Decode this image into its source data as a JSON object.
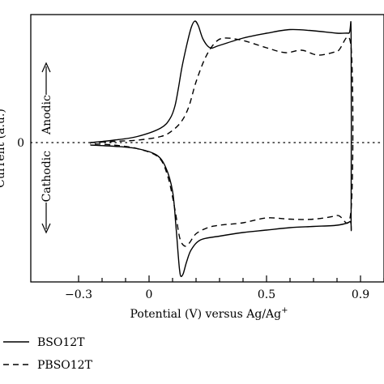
{
  "chart_data": {
    "type": "line",
    "xlabel": "Potential (V) versus Ag/Ag",
    "xlabel_sup": "+",
    "ylabel": "Current (a.u.)",
    "xlim": [
      -0.3,
      0.95
    ],
    "x_ticks": [
      "−0.3",
      "0",
      "0.5",
      "0.9"
    ],
    "x_tick_values": [
      -0.3,
      0,
      0.5,
      0.9
    ],
    "y_ticks": [
      "0"
    ],
    "zero_label": "0",
    "annotations": {
      "anodic": "Anodic",
      "cathodic": "Cathodic"
    },
    "legend_position": "bottom-left",
    "series": [
      {
        "name": "BSO12T",
        "style": "solid",
        "x": [
          -0.25,
          -0.15,
          -0.05,
          0.05,
          0.09,
          0.11,
          0.125,
          0.14,
          0.16,
          0.18,
          0.195,
          0.21,
          0.23,
          0.26,
          0.3,
          0.4,
          0.5,
          0.6,
          0.7,
          0.8,
          0.85,
          0.86,
          0.86,
          0.855,
          0.8,
          0.7,
          0.6,
          0.5,
          0.4,
          0.3,
          0.22,
          0.18,
          0.16,
          0.145,
          0.135,
          0.13,
          0.125,
          0.115,
          0.1,
          0.07,
          0.03,
          -0.05,
          -0.15,
          -0.25
        ],
        "y": [
          0.0,
          0.02,
          0.05,
          0.12,
          0.2,
          0.3,
          0.45,
          0.62,
          0.8,
          0.95,
          1.0,
          0.96,
          0.85,
          0.78,
          0.8,
          0.86,
          0.9,
          0.93,
          0.92,
          0.9,
          0.9,
          0.88,
          -0.6,
          -0.65,
          -0.68,
          -0.69,
          -0.7,
          -0.72,
          -0.74,
          -0.77,
          -0.8,
          -0.88,
          -0.98,
          -1.08,
          -1.1,
          -1.05,
          -0.95,
          -0.7,
          -0.4,
          -0.2,
          -0.1,
          -0.05,
          -0.03,
          -0.02
        ]
      },
      {
        "name": "PBSO12T",
        "style": "dashed",
        "x": [
          -0.25,
          -0.15,
          -0.05,
          0.05,
          0.1,
          0.14,
          0.17,
          0.2,
          0.24,
          0.28,
          0.32,
          0.4,
          0.5,
          0.58,
          0.65,
          0.72,
          0.8,
          0.86,
          0.86,
          0.8,
          0.7,
          0.6,
          0.5,
          0.4,
          0.3,
          0.25,
          0.2,
          0.17,
          0.15,
          0.13,
          0.11,
          0.08,
          0.04,
          -0.05,
          -0.15,
          -0.25
        ],
        "y": [
          0.0,
          0.01,
          0.02,
          0.05,
          0.1,
          0.18,
          0.3,
          0.5,
          0.7,
          0.82,
          0.86,
          0.84,
          0.78,
          0.74,
          0.76,
          0.72,
          0.75,
          0.78,
          -0.55,
          -0.6,
          -0.63,
          -0.63,
          -0.62,
          -0.66,
          -0.68,
          -0.7,
          -0.75,
          -0.83,
          -0.85,
          -0.78,
          -0.55,
          -0.28,
          -0.12,
          -0.05,
          -0.02,
          -0.01
        ]
      }
    ]
  }
}
